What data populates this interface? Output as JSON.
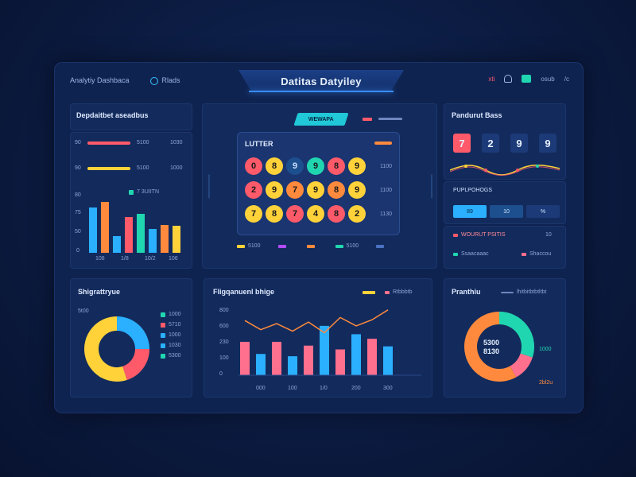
{
  "header": {
    "left_label_1": "Analytiy Dashbaca",
    "left_label_2": "Rlads",
    "title": "Datitas Datyiley",
    "right_label_1": "xti",
    "right_label_2": "osub",
    "right_label_3": "/c"
  },
  "panel_progress": {
    "title": "Depdaitbet aseadbus",
    "rows": [
      {
        "left": "90",
        "right_1": "5100",
        "right_2": "1030",
        "color": "#ff5a6a",
        "fraction": 0.62
      },
      {
        "left": "90",
        "right_1": "5100",
        "right_2": "1000",
        "color": "#ffd23a",
        "fraction": 0.42
      }
    ],
    "legend_text": "7 3UIITN",
    "y_labels": [
      "80",
      "75",
      "50",
      "0"
    ],
    "x_labels": [
      "108",
      "1/8",
      "10/2",
      "106"
    ]
  },
  "panel_lottery": {
    "header_tag": "WEWAPA",
    "inner_title": "LUTTER",
    "rows": [
      {
        "balls": [
          "0",
          "8",
          "9",
          "9",
          "8",
          "9"
        ],
        "label": "1100"
      },
      {
        "balls": [
          "2",
          "9",
          "7",
          "9",
          "8",
          "9"
        ],
        "label": "1100"
      },
      {
        "balls": [
          "7",
          "8",
          "7",
          "4",
          "8",
          "2"
        ],
        "label": "1130"
      }
    ],
    "legend": [
      "5100",
      "",
      "",
      "5100",
      ""
    ]
  },
  "panel_counter": {
    "title": "Pandurut Bass",
    "digits": [
      "7",
      "2",
      "9",
      "9"
    ],
    "sub_title": "PUPLPOHOGS",
    "chips": [
      "89",
      "10",
      "%"
    ],
    "legend_row_1": [
      "WOURUT PSITIS",
      "10"
    ],
    "legend_row_2": [
      "Ssaacaaac",
      "Shaccou"
    ]
  },
  "panel_donut": {
    "title": "Shigrattryue",
    "legend_top": "5t00",
    "legend": [
      "1000",
      "5710",
      "1000",
      "1030",
      "5300"
    ]
  },
  "panel_combo": {
    "title": "Fligqanuenl bhige",
    "legend": [
      "",
      "Rtbbbtb"
    ],
    "y_labels": [
      "800",
      "600",
      "230",
      "100",
      "0"
    ],
    "x_labels": [
      "000",
      "100",
      "1/0",
      "200",
      "300"
    ]
  },
  "panel_ring": {
    "title": "Pranthiu",
    "legend_label": "lhitbitbtbtltbt",
    "center_line_1": "5300",
    "center_line_2": "8130",
    "annotation_1": "1000",
    "annotation_2": "2bl2u"
  },
  "colors": {
    "red": "#ff5a6a",
    "yellow": "#ffd23a",
    "blue": "#2ab0ff",
    "teal": "#20d6b0",
    "orange": "#ff8a3d",
    "pink": "#ff6f8e",
    "purple": "#b34bff"
  },
  "chart_data": [
    {
      "type": "bar",
      "categories": [
        "108",
        "",
        "1/8",
        "",
        "10/2",
        "",
        "106",
        ""
      ],
      "values": [
        58,
        66,
        22,
        46,
        50,
        31,
        36,
        35
      ],
      "colors": [
        "#2ab0ff",
        "#ff8a3d",
        "#2ab0ff",
        "#ff5a6a",
        "#20d6b0",
        "#2ab0ff",
        "#ff8a3d",
        "#ffd23a"
      ],
      "ylim": [
        0,
        80
      ]
    },
    {
      "type": "bar",
      "categories": [
        "000",
        "",
        "100",
        "",
        "1/0",
        "",
        "200",
        "",
        "300",
        ""
      ],
      "bars": [
        440,
        280,
        440,
        250,
        390,
        650,
        340,
        540,
        480,
        380
      ],
      "bar_colors": [
        "#ff6f8e",
        "#2ab0ff",
        "#ff6f8e",
        "#2ab0ff",
        "#ff6f8e",
        "#2ab0ff",
        "#ff6f8e",
        "#2ab0ff",
        "#ff6f8e",
        "#2ab0ff"
      ],
      "line": [
        720,
        600,
        680,
        580,
        700,
        560,
        760,
        650,
        730,
        860
      ],
      "ylim": [
        0,
        900
      ]
    },
    {
      "type": "pie",
      "categories": [
        "blue",
        "red",
        "yellow"
      ],
      "values": [
        25,
        20,
        55
      ]
    },
    {
      "type": "pie",
      "categories": [
        "teal",
        "pink",
        "orange"
      ],
      "values": [
        30,
        12,
        58
      ]
    }
  ]
}
